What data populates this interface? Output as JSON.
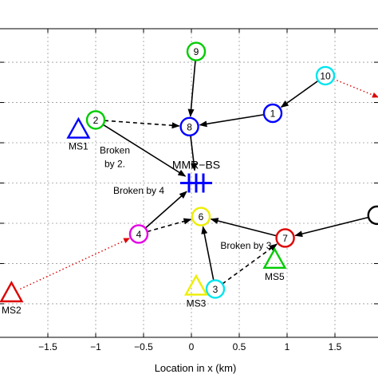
{
  "chart_data": {
    "type": "scatter",
    "title": "",
    "xlabel": "Location in x (km)",
    "ylabel": "",
    "xlim": [
      -2.0,
      1.95
    ],
    "ylim": [
      -1.15,
      1.15
    ],
    "grid": true,
    "x_ticks": [
      -1.5,
      -1,
      -0.5,
      0,
      0.5,
      1,
      1.5
    ],
    "x_tick_labels": [
      "−1.5",
      "−1",
      "−0.5",
      "0",
      "0.5",
      "1",
      "1.5"
    ],
    "y_ticks": [
      -0.9,
      -0.6,
      -0.3,
      0,
      0.3,
      0.6,
      0.9
    ],
    "base_station": {
      "label": "MMR−BS",
      "x": 0.05,
      "y": 0.0,
      "color": "#0000ff"
    },
    "relay_stations": [
      {
        "label": "9",
        "x": 0.05,
        "y": 0.98,
        "color": "#00cc00"
      },
      {
        "label": "10",
        "x": 1.4,
        "y": 0.8,
        "color": "#00e5ee"
      },
      {
        "label": "1",
        "x": 0.85,
        "y": 0.52,
        "color": "#0000ff"
      },
      {
        "label": "2",
        "x": -1.0,
        "y": 0.47,
        "color": "#00cc00"
      },
      {
        "label": "8",
        "x": -0.02,
        "y": 0.42,
        "color": "#0000ff"
      },
      {
        "label": "4",
        "x": -0.55,
        "y": -0.38,
        "color": "#e600e6"
      },
      {
        "label": "6",
        "x": 0.1,
        "y": -0.25,
        "color": "#eeee00"
      },
      {
        "label": "7",
        "x": 0.98,
        "y": -0.41,
        "color": "#dd0000"
      },
      {
        "label": "3",
        "x": 0.25,
        "y": -0.79,
        "color": "#00e5ee"
      },
      {
        "label": "",
        "x": 1.94,
        "y": -0.24,
        "color": "#000000"
      }
    ],
    "mobile_stations": [
      {
        "label": "MS1",
        "x": -1.18,
        "y": 0.4,
        "color": "#0000ff"
      },
      {
        "label": "MS2",
        "x": -1.88,
        "y": -0.82,
        "color": "#dd0000"
      },
      {
        "label": "MS3",
        "x": 0.05,
        "y": -0.77,
        "color": "#eeee00"
      },
      {
        "label": "MS5",
        "x": 0.87,
        "y": -0.57,
        "color": "#00cc00"
      }
    ],
    "solid_links": [
      {
        "from": "9",
        "to": "8"
      },
      {
        "from": "10",
        "to": "1"
      },
      {
        "from": "1",
        "to": "8"
      },
      {
        "from": "8",
        "to": "MMR−BS"
      },
      {
        "from": "2",
        "to": "MMR−BS"
      },
      {
        "from": "4",
        "to": "MMR−BS"
      },
      {
        "from": "3",
        "to": "6"
      },
      {
        "from": "7",
        "to": "6"
      },
      {
        "from": "",
        "to": "7"
      }
    ],
    "dashed_links": [
      {
        "from": "2",
        "to": "8"
      },
      {
        "from": "4",
        "to": "6"
      },
      {
        "from": "3",
        "to": "7"
      }
    ],
    "ms_links": [
      {
        "from": "10",
        "to": "offscreen-right",
        "x2": 1.95,
        "y2": 0.64
      },
      {
        "from": "4",
        "to": "MS2"
      }
    ],
    "annotations": [
      {
        "text": "Broken",
        "x": -0.8,
        "y": 0.22
      },
      {
        "text": "by 2.",
        "x": -0.8,
        "y": 0.12
      },
      {
        "text": "Broken by 4",
        "x": -0.55,
        "y": -0.08
      },
      {
        "text": "Broken by 3",
        "x": 0.57,
        "y": -0.49
      }
    ]
  }
}
